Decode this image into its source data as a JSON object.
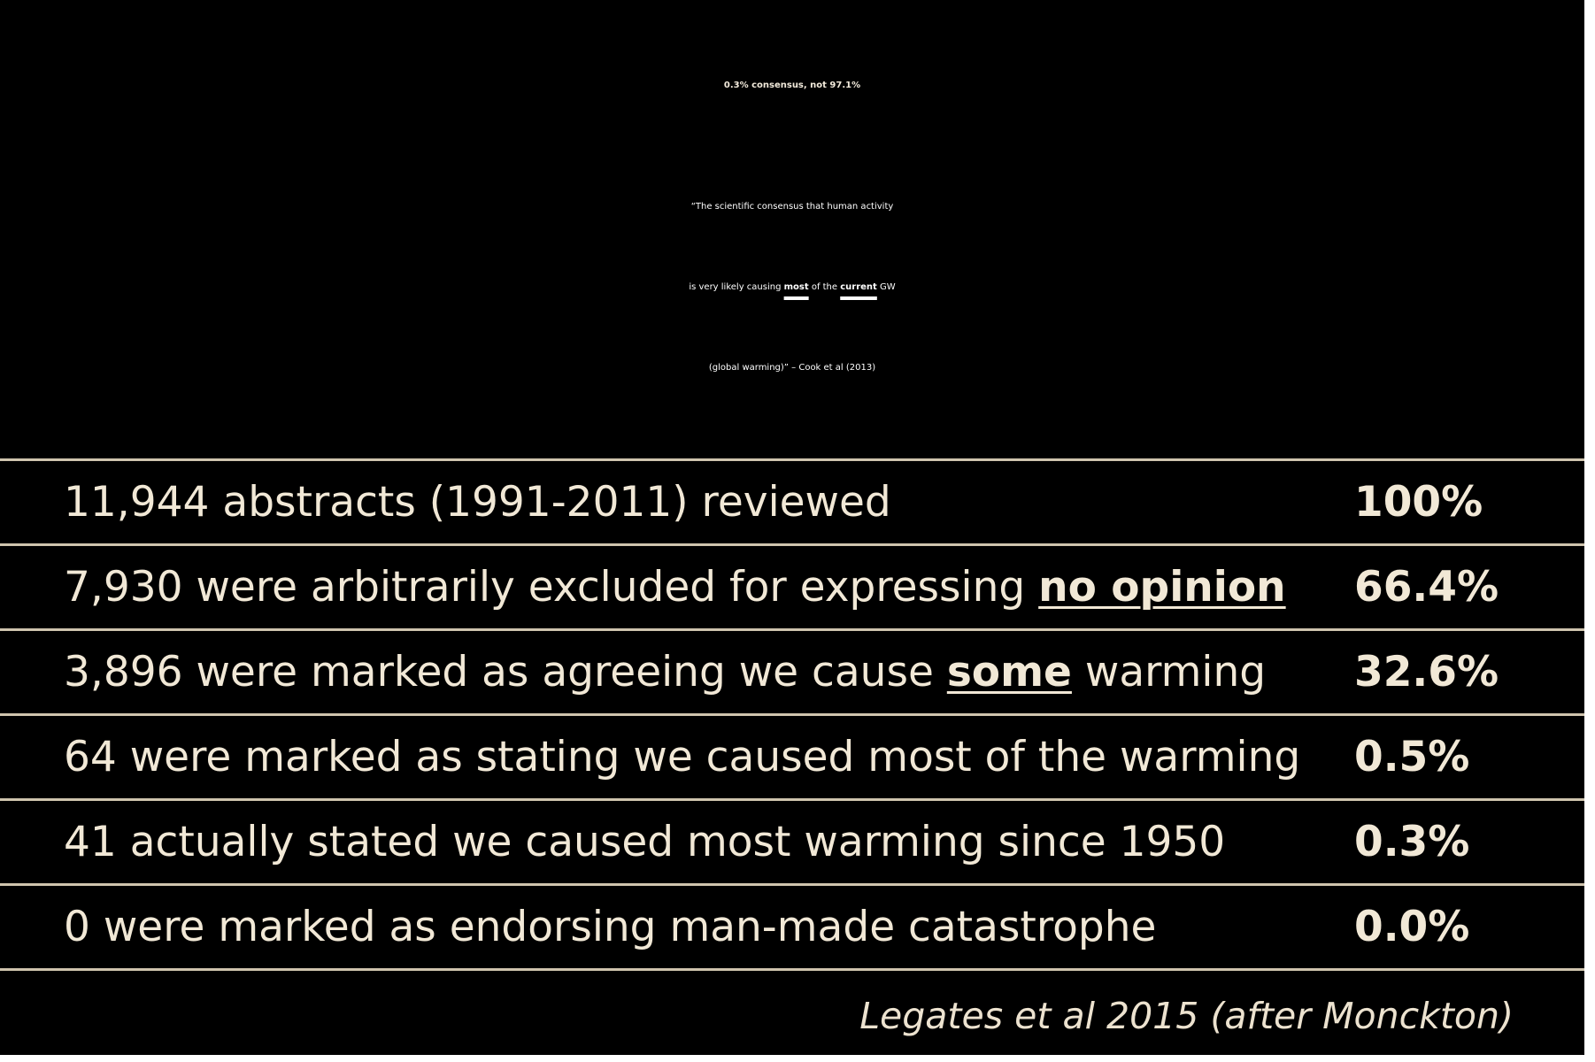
{
  "title": "0.3% consensus, not 97.1%",
  "quote": {
    "line1": "“The scientific consensus that human activity",
    "line2_pre": "is very likely causing ",
    "line2_em1": "most",
    "line2_mid": " of the ",
    "line2_em2": "current",
    "line2_post": " GW",
    "line3": "(global warming)” – Cook et al (2013)"
  },
  "rows": [
    {
      "pre": "11,944 abstracts (1991-2011) reviewed",
      "em": "",
      "post": "",
      "pct": "100%"
    },
    {
      "pre": "7,930 were arbitrarily excluded for expressing ",
      "em": "no opinion",
      "post": "",
      "pct": "66.4%"
    },
    {
      "pre": "3,896 were marked as agreeing we cause ",
      "em": "some",
      "post": " warming",
      "pct": "32.6%"
    },
    {
      "pre": "64 were marked as stating we caused most of the warming",
      "em": "",
      "post": "",
      "pct": "0.5%"
    },
    {
      "pre": "41 actually stated we caused most warming since 1950",
      "em": "",
      "post": "",
      "pct": "0.3%"
    },
    {
      "pre": "0 were marked as endorsing man-made catastrophe",
      "em": "",
      "post": "",
      "pct": "0.0%"
    }
  ],
  "source": "Legates et al 2015  (after Monckton)",
  "colors": {
    "background": "#000000",
    "text": "#f1e8d6",
    "rule": "#cfc4ae"
  }
}
